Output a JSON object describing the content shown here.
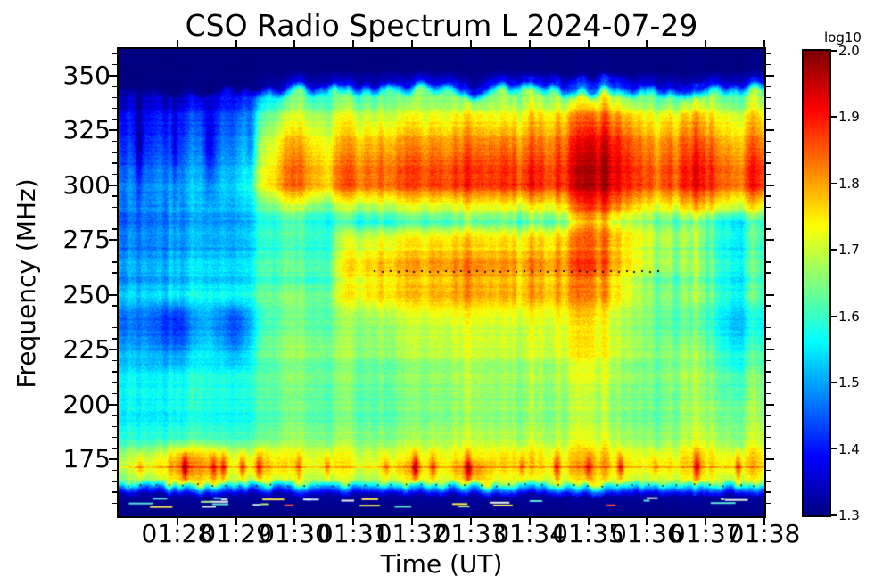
{
  "chart_data": {
    "type": "heatmap",
    "title": "CSO Radio Spectrum L 2024-07-29",
    "xlabel": "Time (UT)",
    "ylabel": "Frequency (MHz)",
    "x_tick_labels": [
      "01:28",
      "01:29",
      "01:30",
      "01:31",
      "01:32",
      "01:33",
      "01:34",
      "01:35",
      "01:36",
      "01:37",
      "01:38"
    ],
    "x_tick_minutes": [
      1,
      2,
      3,
      4,
      5,
      6,
      7,
      8,
      9,
      10,
      11
    ],
    "x_range_labels": [
      "01:27",
      "01:38"
    ],
    "y_tick_values": [
      350,
      325,
      300,
      275,
      250,
      225,
      200,
      175
    ],
    "y_minor_step_mhz": 5,
    "y_range_mhz": [
      149,
      362
    ],
    "grid_lines": "off",
    "value_scale": "log10",
    "value_range": [
      1.3,
      2.0
    ],
    "colormap": "jet",
    "colorbar": {
      "title": "log10",
      "tick_labels": [
        "2.0",
        "1.9",
        "1.8",
        "1.7",
        "1.6",
        "1.5",
        "1.4",
        "1.3"
      ],
      "tick_values": [
        2.0,
        1.9,
        1.8,
        1.7,
        1.6,
        1.5,
        1.4,
        1.3
      ],
      "position": "right"
    },
    "grid": {
      "time_start_min": 0,
      "time_step_min": 0.5,
      "n_time_cols": 23,
      "freqs_mhz": [
        362,
        352,
        345,
        340,
        330,
        320,
        310,
        300,
        290,
        283,
        275,
        265,
        258,
        250,
        240,
        228,
        215,
        205,
        195,
        185,
        176,
        170,
        165,
        162,
        158,
        149
      ],
      "log10_values": [
        [
          1.3,
          1.3,
          1.3,
          1.3,
          1.3,
          1.3,
          1.3,
          1.3,
          1.3,
          1.3,
          1.3,
          1.3,
          1.3,
          1.3,
          1.3,
          1.3,
          1.3,
          1.3,
          1.3,
          1.3,
          1.3,
          1.3,
          1.3
        ],
        [
          1.3,
          1.3,
          1.3,
          1.3,
          1.3,
          1.3,
          1.3,
          1.3,
          1.3,
          1.3,
          1.3,
          1.3,
          1.3,
          1.3,
          1.3,
          1.3,
          1.3,
          1.3,
          1.3,
          1.3,
          1.3,
          1.3,
          1.3
        ],
        [
          1.3,
          1.3,
          1.3,
          1.3,
          1.3,
          1.32,
          1.36,
          1.34,
          1.36,
          1.36,
          1.36,
          1.36,
          1.36,
          1.36,
          1.36,
          1.38,
          1.42,
          1.4,
          1.36,
          1.36,
          1.36,
          1.36,
          1.35
        ],
        [
          1.36,
          1.35,
          1.36,
          1.35,
          1.38,
          1.52,
          1.62,
          1.58,
          1.62,
          1.62,
          1.62,
          1.62,
          1.62,
          1.62,
          1.62,
          1.64,
          1.68,
          1.66,
          1.62,
          1.63,
          1.62,
          1.62,
          1.6
        ],
        [
          1.42,
          1.4,
          1.43,
          1.41,
          1.45,
          1.62,
          1.72,
          1.68,
          1.73,
          1.72,
          1.73,
          1.72,
          1.73,
          1.72,
          1.73,
          1.76,
          1.82,
          1.8,
          1.75,
          1.76,
          1.74,
          1.74,
          1.73
        ],
        [
          1.45,
          1.43,
          1.46,
          1.44,
          1.48,
          1.68,
          1.8,
          1.73,
          1.8,
          1.8,
          1.81,
          1.8,
          1.8,
          1.81,
          1.8,
          1.83,
          1.9,
          1.88,
          1.82,
          1.83,
          1.81,
          1.8,
          1.8
        ],
        [
          1.47,
          1.45,
          1.48,
          1.46,
          1.5,
          1.7,
          1.84,
          1.76,
          1.84,
          1.84,
          1.85,
          1.84,
          1.84,
          1.85,
          1.84,
          1.86,
          1.93,
          1.9,
          1.85,
          1.86,
          1.85,
          1.84,
          1.84
        ],
        [
          1.5,
          1.48,
          1.51,
          1.49,
          1.53,
          1.72,
          1.85,
          1.77,
          1.86,
          1.85,
          1.86,
          1.86,
          1.85,
          1.86,
          1.86,
          1.87,
          1.93,
          1.9,
          1.86,
          1.87,
          1.86,
          1.85,
          1.85
        ],
        [
          1.5,
          1.49,
          1.51,
          1.5,
          1.52,
          1.62,
          1.7,
          1.64,
          1.7,
          1.7,
          1.71,
          1.7,
          1.7,
          1.71,
          1.7,
          1.73,
          1.85,
          1.8,
          1.74,
          1.74,
          1.73,
          1.72,
          1.7
        ],
        [
          1.47,
          1.46,
          1.48,
          1.47,
          1.49,
          1.56,
          1.6,
          1.57,
          1.59,
          1.59,
          1.6,
          1.59,
          1.6,
          1.6,
          1.59,
          1.62,
          1.76,
          1.68,
          1.66,
          1.62,
          1.58,
          1.56,
          1.56
        ],
        [
          1.5,
          1.48,
          1.5,
          1.49,
          1.51,
          1.58,
          1.61,
          1.59,
          1.72,
          1.74,
          1.74,
          1.75,
          1.74,
          1.74,
          1.73,
          1.76,
          1.82,
          1.76,
          1.72,
          1.68,
          1.6,
          1.58,
          1.58
        ],
        [
          1.52,
          1.5,
          1.52,
          1.51,
          1.53,
          1.59,
          1.62,
          1.6,
          1.76,
          1.78,
          1.78,
          1.79,
          1.78,
          1.78,
          1.77,
          1.79,
          1.84,
          1.76,
          1.7,
          1.66,
          1.6,
          1.58,
          1.58
        ],
        [
          1.52,
          1.51,
          1.53,
          1.52,
          1.54,
          1.6,
          1.62,
          1.61,
          1.76,
          1.78,
          1.78,
          1.78,
          1.79,
          1.78,
          1.77,
          1.79,
          1.82,
          1.74,
          1.68,
          1.64,
          1.6,
          1.58,
          1.58
        ],
        [
          1.55,
          1.53,
          1.55,
          1.54,
          1.56,
          1.61,
          1.64,
          1.62,
          1.74,
          1.76,
          1.76,
          1.77,
          1.76,
          1.76,
          1.75,
          1.77,
          1.78,
          1.72,
          1.66,
          1.64,
          1.6,
          1.58,
          1.58
        ],
        [
          1.48,
          1.47,
          1.42,
          1.5,
          1.44,
          1.6,
          1.64,
          1.62,
          1.68,
          1.7,
          1.7,
          1.71,
          1.7,
          1.7,
          1.7,
          1.72,
          1.74,
          1.68,
          1.66,
          1.62,
          1.58,
          1.53,
          1.54
        ],
        [
          1.5,
          1.49,
          1.44,
          1.52,
          1.46,
          1.62,
          1.66,
          1.64,
          1.67,
          1.68,
          1.68,
          1.68,
          1.68,
          1.68,
          1.68,
          1.7,
          1.72,
          1.68,
          1.66,
          1.64,
          1.6,
          1.55,
          1.56
        ],
        [
          1.58,
          1.56,
          1.57,
          1.57,
          1.58,
          1.62,
          1.66,
          1.64,
          1.66,
          1.66,
          1.66,
          1.66,
          1.66,
          1.66,
          1.66,
          1.68,
          1.7,
          1.67,
          1.66,
          1.67,
          1.64,
          1.62,
          1.62
        ],
        [
          1.58,
          1.57,
          1.58,
          1.57,
          1.58,
          1.61,
          1.64,
          1.62,
          1.64,
          1.64,
          1.64,
          1.64,
          1.64,
          1.64,
          1.64,
          1.65,
          1.66,
          1.64,
          1.64,
          1.64,
          1.62,
          1.62,
          1.62
        ],
        [
          1.55,
          1.54,
          1.55,
          1.54,
          1.55,
          1.58,
          1.62,
          1.6,
          1.62,
          1.62,
          1.62,
          1.62,
          1.62,
          1.62,
          1.62,
          1.63,
          1.64,
          1.62,
          1.62,
          1.63,
          1.62,
          1.63,
          1.62
        ],
        [
          1.6,
          1.59,
          1.6,
          1.59,
          1.6,
          1.62,
          1.66,
          1.64,
          1.66,
          1.66,
          1.66,
          1.66,
          1.66,
          1.66,
          1.66,
          1.67,
          1.68,
          1.66,
          1.66,
          1.66,
          1.66,
          1.66,
          1.66
        ],
        [
          1.7,
          1.69,
          1.78,
          1.76,
          1.71,
          1.74,
          1.72,
          1.71,
          1.72,
          1.72,
          1.73,
          1.72,
          1.72,
          1.73,
          1.72,
          1.73,
          1.74,
          1.72,
          1.72,
          1.73,
          1.72,
          1.73,
          1.72
        ],
        [
          1.72,
          1.73,
          1.82,
          1.8,
          1.74,
          1.78,
          1.74,
          1.73,
          1.74,
          1.75,
          1.8,
          1.74,
          1.82,
          1.75,
          1.74,
          1.76,
          1.78,
          1.75,
          1.74,
          1.76,
          1.74,
          1.76,
          1.74
        ],
        [
          1.66,
          1.66,
          1.74,
          1.72,
          1.67,
          1.7,
          1.68,
          1.67,
          1.68,
          1.68,
          1.72,
          1.68,
          1.74,
          1.68,
          1.68,
          1.69,
          1.7,
          1.68,
          1.68,
          1.69,
          1.68,
          1.69,
          1.68
        ],
        [
          1.48,
          1.48,
          1.52,
          1.5,
          1.48,
          1.5,
          1.49,
          1.48,
          1.49,
          1.49,
          1.5,
          1.49,
          1.5,
          1.49,
          1.49,
          1.5,
          1.5,
          1.49,
          1.49,
          1.5,
          1.49,
          1.5,
          1.49
        ],
        [
          1.32,
          1.32,
          1.32,
          1.32,
          1.32,
          1.32,
          1.32,
          1.32,
          1.32,
          1.32,
          1.32,
          1.32,
          1.32,
          1.32,
          1.32,
          1.32,
          1.32,
          1.32,
          1.32,
          1.32,
          1.32,
          1.32,
          1.32
        ],
        [
          1.3,
          1.3,
          1.3,
          1.3,
          1.3,
          1.3,
          1.3,
          1.3,
          1.3,
          1.3,
          1.3,
          1.3,
          1.3,
          1.3,
          1.3,
          1.3,
          1.3,
          1.3,
          1.3,
          1.3,
          1.3,
          1.3,
          1.3
        ]
      ]
    },
    "features": {
      "dotted_black_line": {
        "freq_mhz": 261,
        "time_range_min": [
          4.35,
          9.25
        ]
      },
      "burst_band_mhz": [
        295,
        345
      ],
      "burst_onset_label": "01:30",
      "peak_time_label": "01:35",
      "quiet_navy_above_mhz": 346,
      "quiet_navy_below_mhz": 161,
      "rfi_spike_band_mhz": [
        164,
        180
      ]
    }
  }
}
